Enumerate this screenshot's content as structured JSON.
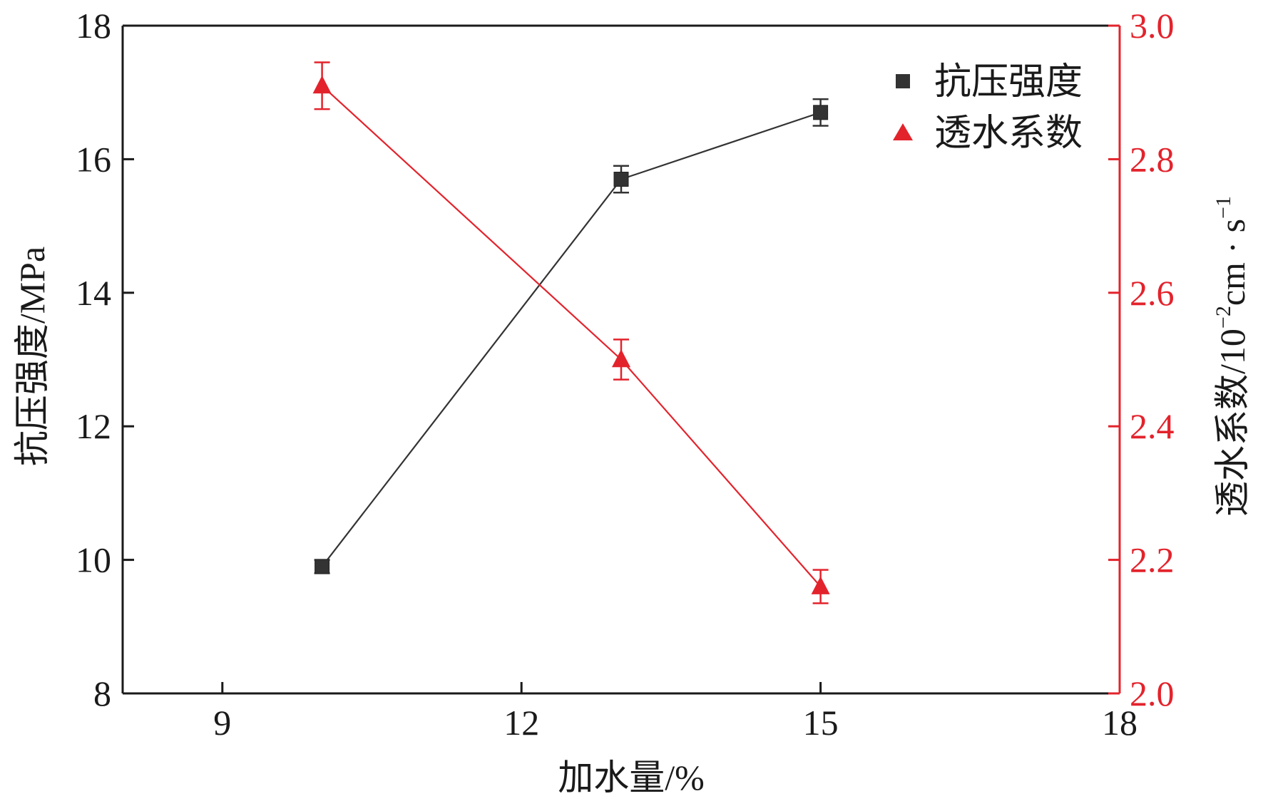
{
  "chart_data": {
    "type": "line",
    "xlabel": "加水量/%",
    "ylabel_left": "抗压强度/MPa",
    "ylabel_right": {
      "main": "透水系数/10",
      "sup1": "−2",
      "mid": "cm · s",
      "sup2": "−1"
    },
    "xlim": [
      8,
      18
    ],
    "xticks": [
      9,
      12,
      15,
      18
    ],
    "ylim_left": [
      8,
      18
    ],
    "yticks_left": [
      8,
      10,
      12,
      14,
      16,
      18
    ],
    "ylim_right": [
      2.0,
      3.0
    ],
    "yticks_right": [
      "2.0",
      "2.2",
      "2.4",
      "2.6",
      "2.8",
      "3.0"
    ],
    "legend_position": "top-right",
    "series": [
      {
        "name": "抗压强度",
        "axis": "left",
        "marker": "square",
        "color": "#333333",
        "x": [
          10,
          13,
          15
        ],
        "y": [
          9.9,
          15.7,
          16.7
        ],
        "err": [
          0.1,
          0.2,
          0.2
        ]
      },
      {
        "name": "透水系数",
        "axis": "right",
        "marker": "triangle",
        "color": "#e3232c",
        "x": [
          10,
          13,
          15
        ],
        "y": [
          2.91,
          2.5,
          2.16
        ],
        "err": [
          0.035,
          0.03,
          0.025
        ]
      }
    ]
  }
}
